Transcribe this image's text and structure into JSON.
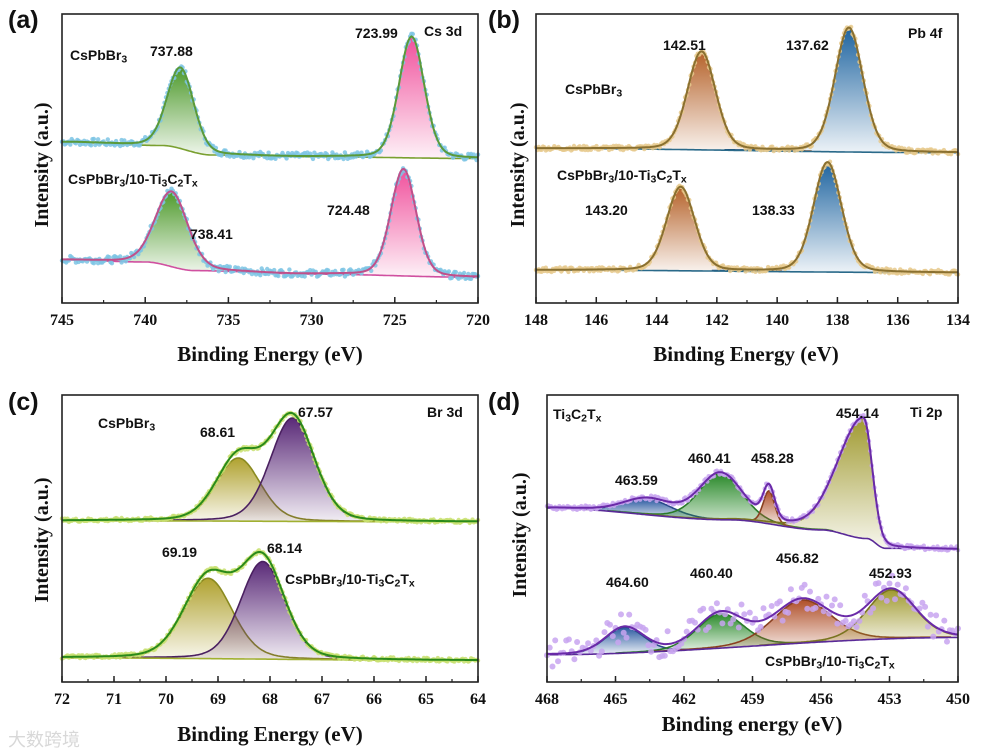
{
  "watermark": "大数跨境",
  "chart_data": [
    {
      "type": "line",
      "panel_label": "(a)",
      "core_level": "Cs 3d",
      "xlabel": "Binding Energy (eV)",
      "ylabel": "Intensity (a.u.)",
      "xlim": [
        745,
        720
      ],
      "ylim": [
        0,
        100
      ],
      "tick_labels": [
        "745",
        "740",
        "735",
        "730",
        "725",
        "720"
      ],
      "tick_values": [
        745,
        740,
        735,
        730,
        725,
        720
      ],
      "minor_step": 2.5,
      "dot_color": "#7cc4e4",
      "spectra": [
        {
          "name": "CsPbBr3",
          "envelope_color": "#5a9a3a",
          "baseline_color": "#7aa030",
          "noise": 1.2,
          "baseline": [
            [
              745,
              55.7
            ],
            [
              739,
              54.5
            ],
            [
              736,
              51.2
            ],
            [
              730,
              50.6
            ],
            [
              720,
              50.0
            ]
          ],
          "peaks": [
            {
              "center": 737.88,
              "height": 28,
              "fwhm": 1.9,
              "color": "#4e9a2c",
              "line": "#4a8a2a",
              "label": "737.88"
            },
            {
              "center": 723.99,
              "height": 42,
              "fwhm": 1.8,
              "color": "#f0509c",
              "line": "#c04a8a",
              "label": "723.99"
            }
          ]
        },
        {
          "name": "CsPbBr3/10-Ti3C2Tx",
          "envelope_color": "#c0508a",
          "baseline_color": "#d050a0",
          "noise": 1.2,
          "baseline": [
            [
              745,
              14.9
            ],
            [
              740,
              14.2
            ],
            [
              737,
              11.2
            ],
            [
              730,
              10.0
            ],
            [
              720,
              8.9
            ]
          ],
          "peaks": [
            {
              "center": 738.41,
              "height": 26,
              "fwhm": 2.3,
              "color": "#4e9a2c",
              "line": "#4a8a2a",
              "label": "738.41"
            },
            {
              "center": 724.48,
              "height": 37,
              "fwhm": 1.8,
              "color": "#f0509c",
              "line": "#c04a8a",
              "label": "724.48"
            }
          ]
        }
      ]
    },
    {
      "type": "line",
      "panel_label": "(b)",
      "core_level": "Pb 4f",
      "xlabel": "Binding Energy (eV)",
      "ylabel": "Intensity (a.u.)",
      "xlim": [
        148,
        134
      ],
      "ylim": [
        0,
        100
      ],
      "tick_labels": [
        "148",
        "146",
        "144",
        "142",
        "140",
        "138",
        "136",
        "134"
      ],
      "tick_values": [
        148,
        146,
        144,
        142,
        140,
        138,
        136,
        134
      ],
      "minor_step": 1,
      "dot_color": "#e6c98c",
      "spectra": [
        {
          "name": "CsPbBr3",
          "envelope_color": "#8a7030",
          "baseline_color": "#2a6a8a",
          "noise": 0.8,
          "baseline": [
            [
              148,
              53.5
            ],
            [
              134,
              52.0
            ]
          ],
          "peaks": [
            {
              "center": 142.51,
              "height": 34,
              "fwhm": 1.1,
              "color": "#b5622a",
              "line": "#8a4a20",
              "label": "142.51"
            },
            {
              "center": 137.62,
              "height": 43,
              "fwhm": 1.1,
              "color": "#1e64a0",
              "line": "#1a4a7a",
              "label": "137.62"
            }
          ]
        },
        {
          "name": "CsPbBr3/10-Ti3C2Tx",
          "envelope_color": "#8a7030",
          "baseline_color": "#2a6a8a",
          "noise": 0.8,
          "baseline": [
            [
              148,
              11.4
            ],
            [
              134,
              10.5
            ]
          ],
          "peaks": [
            {
              "center": 143.2,
              "height": 29,
              "fwhm": 1.1,
              "color": "#b5622a",
              "line": "#8a4a20",
              "label": "143.20"
            },
            {
              "center": 138.33,
              "height": 38,
              "fwhm": 1.1,
              "color": "#1e64a0",
              "line": "#1a4a7a",
              "label": "138.33"
            }
          ]
        }
      ]
    },
    {
      "type": "line",
      "panel_label": "(c)",
      "core_level": "Br 3d",
      "xlabel": "Binding Energy (eV)",
      "ylabel": "Intensity (a.u.)",
      "xlim": [
        72,
        64
      ],
      "ylim": [
        0,
        100
      ],
      "tick_labels": [
        "72",
        "71",
        "70",
        "69",
        "68",
        "67",
        "66",
        "65",
        "64"
      ],
      "tick_values": [
        72,
        71,
        70,
        69,
        68,
        67,
        66,
        65,
        64
      ],
      "minor_step": 0.5,
      "dot_color": "#c8e070",
      "spectra": [
        {
          "name": "CsPbBr3",
          "envelope_color": "#2a8a1a",
          "baseline_color": "#a0b030",
          "noise": 0.6,
          "baseline": [
            [
              72,
              56.2
            ],
            [
              64,
              55.8
            ]
          ],
          "peaks": [
            {
              "center": 68.61,
              "height": 22,
              "fwhm": 1.0,
              "color": "#b0a230",
              "line": "#8a8a20",
              "label": "68.61"
            },
            {
              "center": 67.57,
              "height": 36,
              "fwhm": 1.0,
              "color": "#5a2a78",
              "line": "#4a2060",
              "label": "67.57"
            }
          ]
        },
        {
          "name": "CsPbBr3/10-Ti3C2Tx",
          "envelope_color": "#2a8a1a",
          "baseline_color": "#a0b030",
          "noise": 0.6,
          "baseline": [
            [
              72,
              8.4
            ],
            [
              64,
              7.5
            ]
          ],
          "peaks": [
            {
              "center": 69.19,
              "height": 28,
              "fwhm": 1.1,
              "color": "#b0a230",
              "line": "#8a8a20",
              "label": "69.19"
            },
            {
              "center": 68.14,
              "height": 34,
              "fwhm": 1.0,
              "color": "#5a2a78",
              "line": "#4a2060",
              "label": "68.14"
            }
          ]
        }
      ]
    },
    {
      "type": "line",
      "panel_label": "(d)",
      "core_level": "Ti 2p",
      "xlabel": "Binding energy (eV)",
      "ylabel": "Intensity (a.u.)",
      "xlim": [
        468,
        450
      ],
      "ylim": [
        0,
        100
      ],
      "tick_labels": [
        "468",
        "465",
        "462",
        "459",
        "456",
        "453",
        "450"
      ],
      "tick_values": [
        468,
        465,
        462,
        459,
        456,
        453,
        450
      ],
      "minor_step": 1.5,
      "dot_color": "#c8a4f0",
      "spectra": [
        {
          "name": "Ti3C2Tx",
          "envelope_color": "#6a2aa8",
          "baseline_color": "#5a2a98",
          "noise": 0.8,
          "baseline": [
            [
              468,
              60.6
            ],
            [
              460,
              56.5
            ],
            [
              456,
              53.0
            ],
            [
              454,
              50.0
            ],
            [
              453.2,
              46.6
            ],
            [
              450,
              46.3
            ]
          ],
          "peaks": [
            {
              "center": 463.59,
              "height": 5.5,
              "fwhm": 2.5,
              "color": "#2a5aa0",
              "line": "#2a4a8a",
              "label": "463.59"
            },
            {
              "center": 460.41,
              "height": 16,
              "fwhm": 2.2,
              "color": "#2a8a2a",
              "line": "#2a7a2a",
              "label": "460.41"
            },
            {
              "center": 458.28,
              "height": 11.5,
              "fwhm": 0.6,
              "color": "#b0502a",
              "line": "#8a4020",
              "label": "458.28"
            },
            {
              "center": 454.14,
              "height": 42,
              "fwhm_left": 2.6,
              "fwhm_right": 0.9,
              "color": "#a09a30",
              "line": "#7a7420",
              "label": "454.14"
            }
          ]
        },
        {
          "name": "CsPbBr3/10-Ti3C2Tx",
          "envelope_color": "#6a2aa8",
          "baseline_color": "#5a2a98",
          "noise": 5,
          "baseline": [
            [
              468,
              9.5
            ],
            [
              450,
              15.5
            ]
          ],
          "peaks": [
            {
              "center": 464.6,
              "height": 9,
              "fwhm": 2.0,
              "color": "#2a5aa0",
              "line": "#2a4a8a",
              "label": "464.60"
            },
            {
              "center": 460.4,
              "height": 12,
              "fwhm": 2.4,
              "color": "#2a8a2a",
              "line": "#2a7a2a",
              "label": "460.40"
            },
            {
              "center": 456.82,
              "height": 15,
              "fwhm": 3.0,
              "color": "#b0502a",
              "line": "#8a4020",
              "label": "456.82"
            },
            {
              "center": 452.93,
              "height": 17,
              "fwhm": 2.5,
              "color": "#a09a30",
              "line": "#7a7420",
              "label": "452.93"
            }
          ]
        }
      ]
    }
  ]
}
